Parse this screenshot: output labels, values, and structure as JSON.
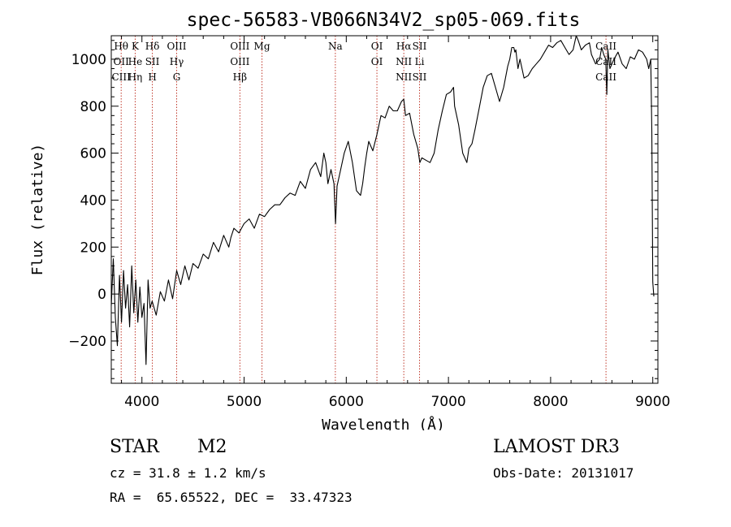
{
  "chart_data": {
    "type": "line",
    "title": "spec-56583-VB066N34V2_sp05-069.fits",
    "xlabel": "Wavelength (Å)",
    "ylabel": "Flux (relative)",
    "xlim": [
      3700,
      9050
    ],
    "ylim": [
      -380,
      1100
    ],
    "xticks": [
      4000,
      5000,
      6000,
      7000,
      8000,
      9000
    ],
    "yticks": [
      -200,
      0,
      200,
      400,
      600,
      800,
      1000
    ],
    "series": [
      {
        "name": "flux",
        "x": [
          3700,
          3720,
          3740,
          3760,
          3780,
          3800,
          3820,
          3840,
          3860,
          3880,
          3900,
          3920,
          3940,
          3960,
          3980,
          4000,
          4020,
          4040,
          4060,
          4080,
          4100,
          4140,
          4180,
          4220,
          4260,
          4300,
          4340,
          4380,
          4420,
          4460,
          4500,
          4550,
          4600,
          4650,
          4700,
          4750,
          4800,
          4850,
          4870,
          4900,
          4950,
          5000,
          5050,
          5100,
          5150,
          5200,
          5250,
          5300,
          5350,
          5400,
          5450,
          5500,
          5550,
          5600,
          5650,
          5700,
          5750,
          5780,
          5800,
          5820,
          5850,
          5880,
          5895,
          5910,
          5940,
          5980,
          6020,
          6060,
          6100,
          6140,
          6160,
          6180,
          6200,
          6220,
          6260,
          6300,
          6340,
          6380,
          6420,
          6460,
          6500,
          6540,
          6563,
          6580,
          6620,
          6660,
          6700,
          6720,
          6740,
          6780,
          6820,
          6860,
          6900,
          6940,
          6980,
          7020,
          7050,
          7060,
          7080,
          7100,
          7140,
          7180,
          7200,
          7230,
          7260,
          7300,
          7340,
          7380,
          7420,
          7460,
          7500,
          7540,
          7580,
          7600,
          7620,
          7640,
          7650,
          7660,
          7680,
          7700,
          7740,
          7780,
          7820,
          7860,
          7900,
          7940,
          7980,
          8020,
          8060,
          8100,
          8140,
          8180,
          8220,
          8250,
          8270,
          8300,
          8340,
          8380,
          8400,
          8440,
          8480,
          8500,
          8520,
          8540,
          8550,
          8560,
          8580,
          8620,
          8660,
          8700,
          8740,
          8780,
          8820,
          8860,
          8900,
          8940,
          8960,
          8980,
          8990,
          9000,
          9010
        ],
        "y": [
          -50,
          150,
          -100,
          -220,
          80,
          -120,
          100,
          -60,
          40,
          -140,
          120,
          -80,
          60,
          -120,
          30,
          -100,
          -40,
          -300,
          60,
          -60,
          -30,
          -90,
          10,
          -30,
          60,
          -20,
          100,
          40,
          120,
          60,
          130,
          110,
          170,
          150,
          220,
          180,
          250,
          200,
          240,
          280,
          260,
          300,
          320,
          280,
          340,
          330,
          360,
          380,
          380,
          410,
          430,
          420,
          480,
          450,
          530,
          560,
          500,
          600,
          560,
          470,
          530,
          470,
          300,
          460,
          520,
          600,
          650,
          560,
          440,
          420,
          470,
          540,
          600,
          650,
          610,
          680,
          760,
          750,
          800,
          780,
          780,
          820,
          830,
          760,
          770,
          680,
          620,
          560,
          580,
          570,
          560,
          600,
          700,
          780,
          850,
          860,
          880,
          800,
          760,
          720,
          600,
          560,
          620,
          640,
          700,
          790,
          880,
          930,
          940,
          880,
          820,
          880,
          970,
          1000,
          1050,
          1050,
          1030,
          1040,
          960,
          1000,
          920,
          930,
          960,
          980,
          1000,
          1030,
          1060,
          1050,
          1070,
          1080,
          1050,
          1020,
          1040,
          1100,
          1080,
          1040,
          1060,
          1070,
          1020,
          980,
          1000,
          1050,
          1020,
          1000,
          850,
          1040,
          960,
          1000,
          1030,
          980,
          960,
          1010,
          1000,
          1040,
          1030,
          1000,
          960,
          1000,
          700,
          50,
          -10
        ]
      }
    ],
    "line_markers": [
      {
        "labels": [
          "Hθ",
          "OII",
          "CIII"
        ],
        "x": 3797
      },
      {
        "labels": [
          "K",
          "He",
          "Hη"
        ],
        "x": 3934
      },
      {
        "labels": [
          "Hδ",
          "SII",
          "H"
        ],
        "x": 4102
      },
      {
        "labels": [
          "OIII",
          "Hγ",
          "G"
        ],
        "x": 4340
      },
      {
        "labels": [
          "OIII",
          "OIII",
          "Hβ"
        ],
        "x": 4959
      },
      {
        "labels": [
          "Mg"
        ],
        "x": 5175
      },
      {
        "labels": [
          "Na"
        ],
        "x": 5893
      },
      {
        "labels": [
          "OI",
          "OI"
        ],
        "x": 6300
      },
      {
        "labels": [
          "Hα",
          "NII",
          "NII"
        ],
        "x": 6563
      },
      {
        "labels": [
          "SII",
          "Li",
          "SII"
        ],
        "x": 6717
      },
      {
        "labels": [
          "CaII",
          "CaII",
          "CaII"
        ],
        "x": 8542
      }
    ]
  },
  "footer": {
    "object_type": "STAR",
    "subclass": "M2",
    "survey": "LAMOST DR3",
    "cz_line": "cz = 31.8 ± 1.2 km/s",
    "obs_date_line": "Obs-Date: 20131017",
    "coords_line": "RA =  65.65522, DEC =  33.47323"
  }
}
